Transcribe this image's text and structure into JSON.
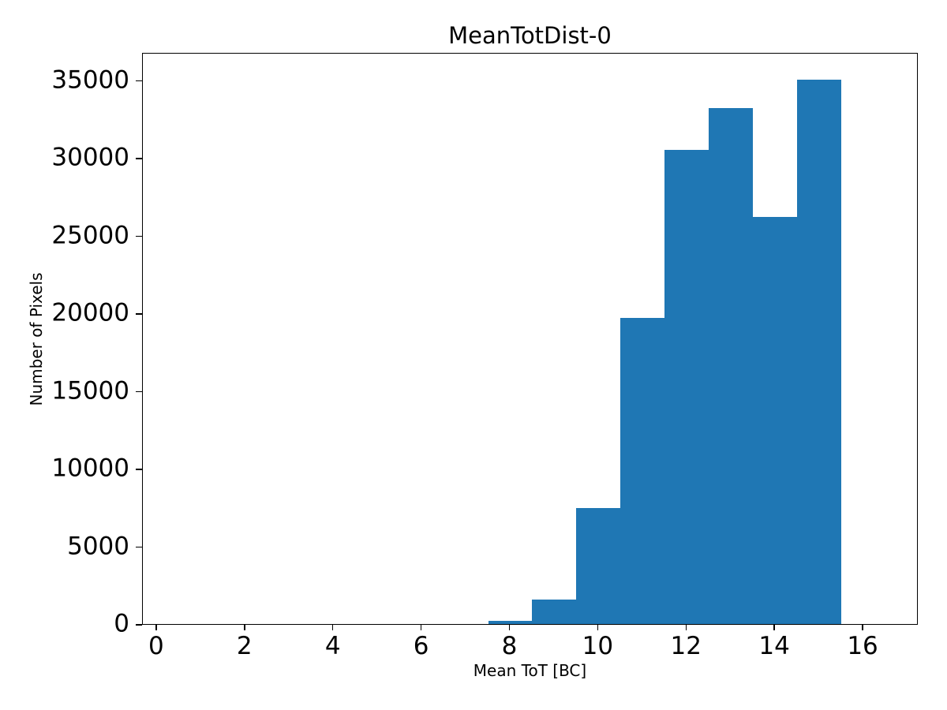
{
  "chart_data": {
    "type": "bar",
    "subtype": "histogram",
    "title": "MeanTotDist-0",
    "xlabel": "Mean ToT [BC]",
    "ylabel": "Number of Pixels",
    "bar_color": "#1f77b4",
    "spine_color": "#000000",
    "background_color": "#ffffff",
    "grid": "off",
    "legend": "none",
    "xlim": [
      -0.32,
      17.25
    ],
    "ylim": [
      0,
      36815
    ],
    "xticks": [
      0,
      2,
      4,
      6,
      8,
      10,
      12,
      14,
      16
    ],
    "yticks": [
      0,
      5000,
      10000,
      15000,
      20000,
      25000,
      30000,
      35000
    ],
    "bin_width": 1,
    "bins": [
      {
        "x0": 7.5,
        "x1": 8.5,
        "count": 180
      },
      {
        "x0": 8.5,
        "x1": 9.5,
        "count": 1560
      },
      {
        "x0": 9.5,
        "x1": 10.5,
        "count": 7480
      },
      {
        "x0": 10.5,
        "x1": 11.5,
        "count": 19680
      },
      {
        "x0": 11.5,
        "x1": 12.5,
        "count": 30540
      },
      {
        "x0": 12.5,
        "x1": 13.5,
        "count": 33190
      },
      {
        "x0": 13.5,
        "x1": 14.5,
        "count": 26180
      },
      {
        "x0": 14.5,
        "x1": 15.5,
        "count": 35060
      }
    ]
  }
}
